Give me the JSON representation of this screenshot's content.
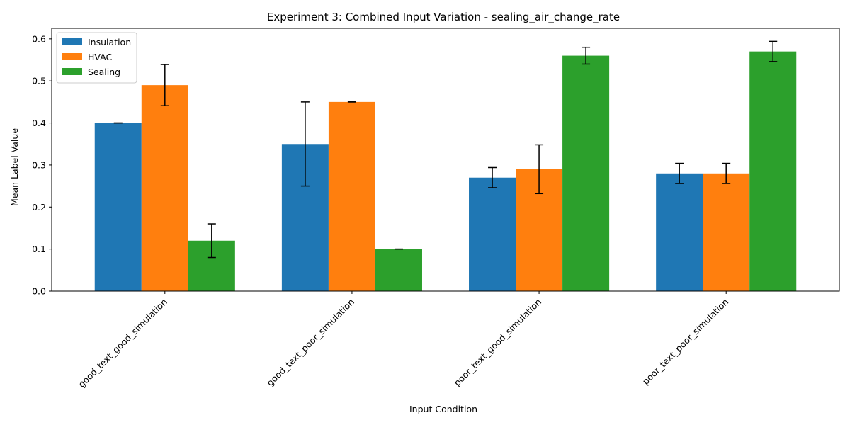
{
  "chart_data": {
    "type": "bar",
    "title": "Experiment 3: Combined Input Variation - sealing_air_change_rate",
    "xlabel": "Input Condition",
    "ylabel": "Mean Label Value",
    "ylim": [
      0,
      0.625
    ],
    "yticks": [
      0.0,
      0.1,
      0.2,
      0.3,
      0.4,
      0.5,
      0.6
    ],
    "ytick_labels": [
      "0.0",
      "0.1",
      "0.2",
      "0.3",
      "0.4",
      "0.5",
      "0.6"
    ],
    "categories": [
      "good_text_good_simulation",
      "good_text_poor_simulation",
      "poor_text_good_simulation",
      "poor_text_poor_simulation"
    ],
    "grid": false,
    "legend_position": "top-left",
    "series": [
      {
        "name": "Insulation",
        "color": "#1f77b4",
        "values": [
          0.4,
          0.35,
          0.27,
          0.28
        ],
        "errors": [
          0.0,
          0.1,
          0.024,
          0.024
        ]
      },
      {
        "name": "HVAC",
        "color": "#ff7f0e",
        "values": [
          0.49,
          0.45,
          0.29,
          0.28
        ],
        "errors": [
          0.049,
          0.0,
          0.058,
          0.024
        ]
      },
      {
        "name": "Sealing",
        "color": "#2ca02c",
        "values": [
          0.12,
          0.1,
          0.56,
          0.57
        ],
        "errors": [
          0.04,
          0.0,
          0.02,
          0.024
        ]
      }
    ]
  }
}
